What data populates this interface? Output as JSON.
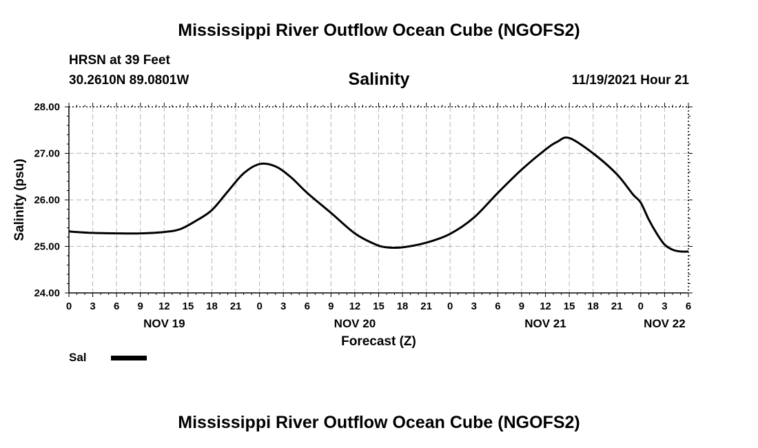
{
  "header": {
    "title": "Mississippi River Outflow Ocean Cube (NGOFS2)",
    "station": "HRSN at 39 Feet",
    "coordinates": "30.2610N  89.0801W",
    "timestamp": "11/19/2021 Hour 21"
  },
  "footer": {
    "title": "Mississippi River Outflow Ocean Cube (NGOFS2)"
  },
  "chart_data": {
    "type": "line",
    "title": "Salinity",
    "xlabel": "Forecast (Z)",
    "ylabel": "Salinity (psu)",
    "x_unit": "hours since NOV 19 00Z",
    "xlim": [
      0,
      78
    ],
    "ylim": [
      24.0,
      28.0
    ],
    "grid": true,
    "x_ticks": [
      0,
      3,
      6,
      9,
      12,
      15,
      18,
      21,
      24,
      27,
      30,
      33,
      36,
      39,
      42,
      45,
      48,
      51,
      54,
      57,
      60,
      63,
      66,
      69,
      72,
      75,
      78
    ],
    "x_tick_labels": [
      "0",
      "3",
      "6",
      "9",
      "12",
      "15",
      "18",
      "21",
      "0",
      "3",
      "6",
      "9",
      "12",
      "15",
      "18",
      "21",
      "0",
      "3",
      "6",
      "9",
      "12",
      "15",
      "18",
      "21",
      "0",
      "3",
      "6"
    ],
    "y_ticks": [
      24.0,
      25.0,
      26.0,
      27.0,
      28.0
    ],
    "y_tick_labels": [
      "24.00",
      "25.00",
      "26.00",
      "27.00",
      "28.00"
    ],
    "date_labels": [
      {
        "label": "NOV 19",
        "x": 12
      },
      {
        "label": "NOV 20",
        "x": 36
      },
      {
        "label": "NOV 21",
        "x": 60
      },
      {
        "label": "NOV 22",
        "x": 75
      }
    ],
    "legend": [
      {
        "name": "Sal",
        "color": "#000000"
      }
    ],
    "series": [
      {
        "name": "Sal",
        "color": "#000000",
        "x": [
          0,
          3,
          6,
          9,
          12,
          14,
          16,
          18,
          20,
          22,
          24,
          26,
          28,
          30,
          33,
          36,
          38.5,
          40,
          42,
          45,
          48,
          51,
          54,
          57,
          60,
          61.5,
          63,
          66,
          69,
          71,
          72,
          73,
          74,
          75,
          76,
          77,
          78
        ],
        "y": [
          25.32,
          25.29,
          25.28,
          25.28,
          25.31,
          25.37,
          25.55,
          25.78,
          26.18,
          26.57,
          26.77,
          26.72,
          26.48,
          26.15,
          25.72,
          25.28,
          25.05,
          24.98,
          24.98,
          25.08,
          25.27,
          25.62,
          26.15,
          26.65,
          27.08,
          27.25,
          27.33,
          27.0,
          26.55,
          26.12,
          25.94,
          25.58,
          25.28,
          25.04,
          24.93,
          24.89,
          24.89
        ]
      }
    ]
  }
}
